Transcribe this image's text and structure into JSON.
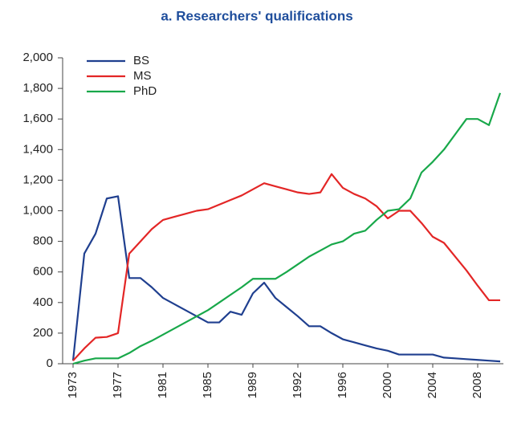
{
  "chart_data": {
    "type": "line",
    "title": "a. Researchers' qualifications",
    "categories": [
      "1973",
      null,
      null,
      null,
      "1977",
      null,
      null,
      null,
      "1981",
      null,
      null,
      null,
      "1985",
      null,
      null,
      null,
      "1989",
      null,
      null,
      null,
      "1992",
      null,
      null,
      null,
      "1996",
      null,
      null,
      null,
      "2000",
      null,
      null,
      null,
      "2004",
      null,
      null,
      null,
      "2008",
      null,
      null
    ],
    "series": [
      {
        "name": "BS",
        "color": "#1f3f8f",
        "values": [
          20,
          720,
          850,
          1080,
          1095,
          560,
          560,
          500,
          430,
          390,
          350,
          310,
          270,
          270,
          340,
          320,
          460,
          530,
          430,
          370,
          310,
          245,
          245,
          200,
          160,
          140,
          120,
          100,
          85,
          60,
          60,
          60,
          60,
          40,
          35,
          30,
          25,
          20,
          15
        ]
      },
      {
        "name": "MS",
        "color": "#e32626",
        "values": [
          20,
          100,
          170,
          175,
          200,
          720,
          800,
          880,
          940,
          960,
          980,
          1000,
          1010,
          1040,
          1070,
          1100,
          1140,
          1180,
          1160,
          1140,
          1120,
          1110,
          1120,
          1240,
          1150,
          1110,
          1080,
          1030,
          950,
          1000,
          1000,
          920,
          830,
          790,
          700,
          610,
          510,
          415,
          415
        ]
      },
      {
        "name": "PhD",
        "color": "#18a84a",
        "values": [
          0,
          20,
          35,
          35,
          35,
          70,
          115,
          150,
          190,
          230,
          270,
          310,
          350,
          400,
          450,
          500,
          555,
          555,
          555,
          600,
          650,
          700,
          740,
          780,
          800,
          850,
          870,
          940,
          1000,
          1010,
          1080,
          1250,
          1320,
          1400,
          1500,
          1600,
          1600,
          1560,
          1770
        ]
      }
    ],
    "ylim": [
      0,
      2000
    ],
    "yticks": [
      0,
      200,
      400,
      600,
      800,
      {
        "value": 1000,
        "label": "1,000"
      },
      {
        "value": 1200,
        "label": "1,200"
      },
      {
        "value": 1400,
        "label": "1,400"
      },
      {
        "value": 1600,
        "label": "1,600"
      },
      {
        "value": 1800,
        "label": "1,800"
      },
      {
        "value": 2000,
        "label": "2,000"
      }
    ],
    "legend": "upper-left"
  }
}
